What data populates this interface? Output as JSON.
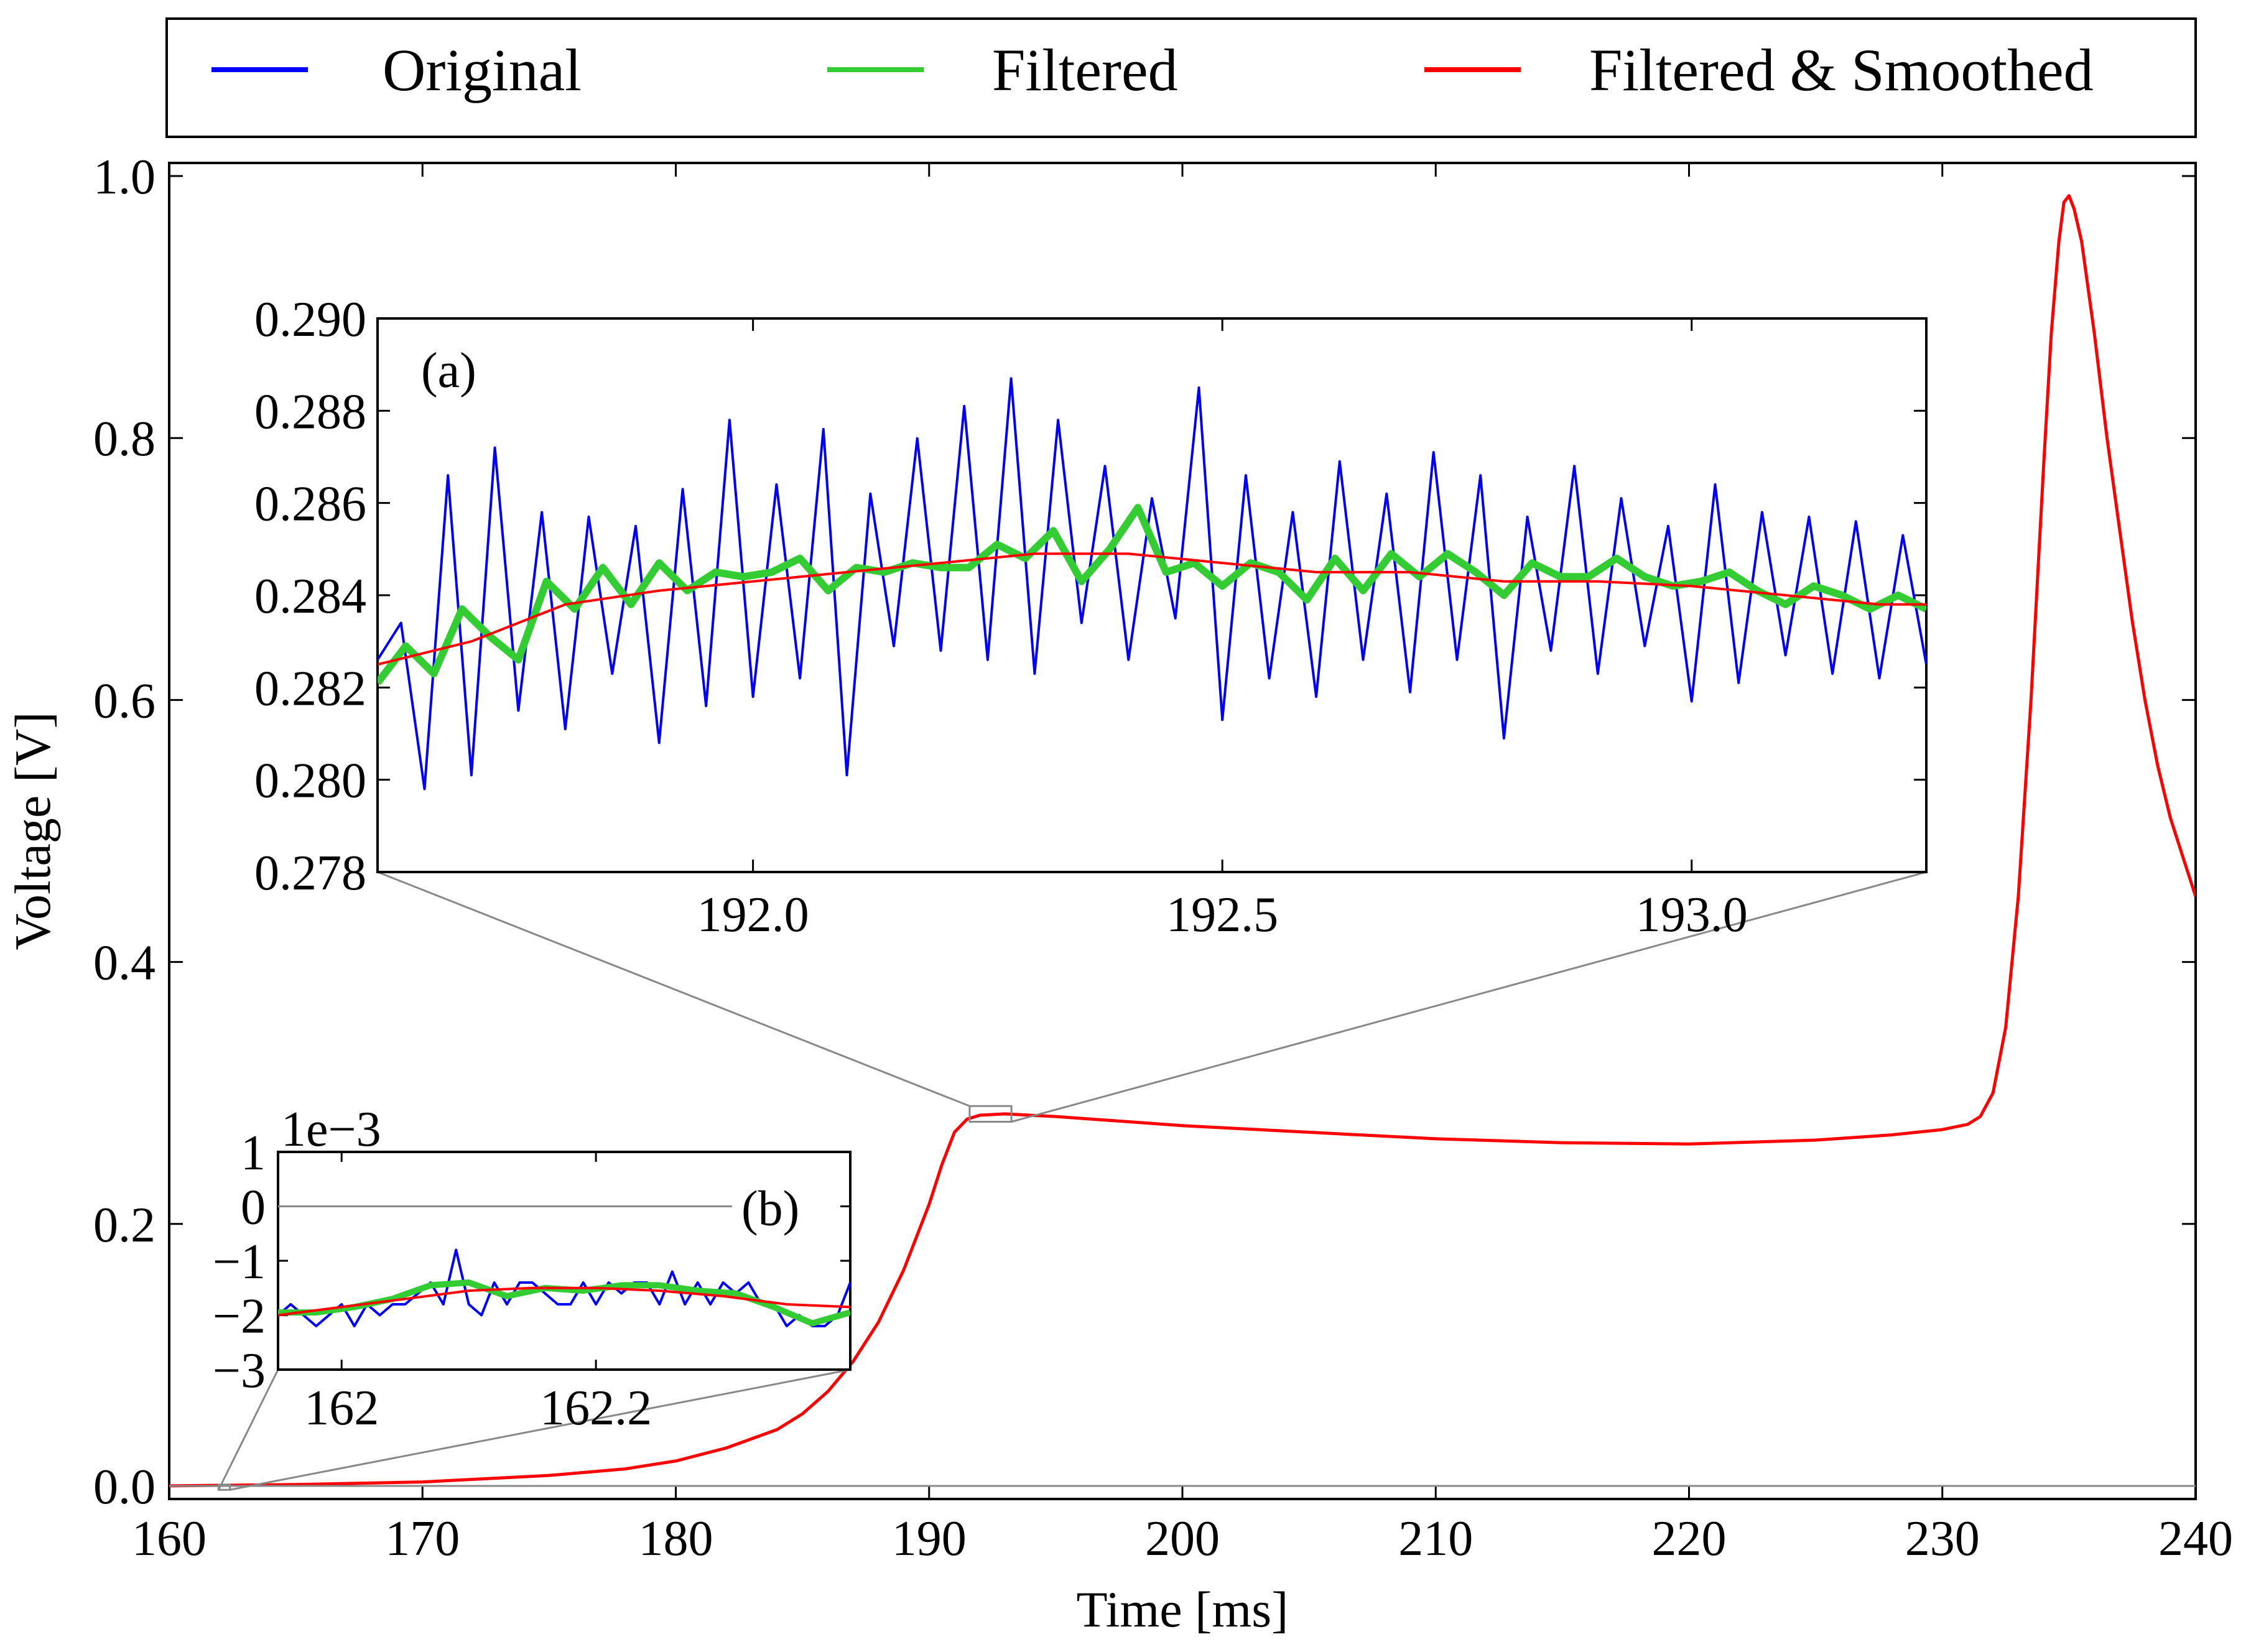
{
  "legend": {
    "placement": "top, above plot",
    "items": [
      {
        "label": "Original",
        "color": "#0000ff"
      },
      {
        "label": "Filtered",
        "color": "#33cc33"
      },
      {
        "label": "Filtered & Smoothed",
        "color": "#ff0000"
      }
    ]
  },
  "chart_data": [
    {
      "type": "line",
      "title": "",
      "xlabel": "Time [ms]",
      "ylabel": "Voltage [V]",
      "xlim": [
        160,
        240
      ],
      "ylim": [
        -0.01,
        1.01
      ],
      "xticks": [
        160,
        170,
        180,
        190,
        200,
        210,
        220,
        230,
        240
      ],
      "xtick_labels": [
        "160",
        "170",
        "180",
        "190",
        "200",
        "210",
        "220",
        "230",
        "240"
      ],
      "yticks": [
        0.0,
        0.2,
        0.4,
        0.6,
        0.8,
        1.0
      ],
      "ytick_labels": [
        "0.0",
        "0.2",
        "0.4",
        "0.6",
        "0.8",
        "1.0"
      ],
      "grid": false,
      "colors": {
        "Original": "#0000ff",
        "Filtered": "#33cc33",
        "Filtered & Smoothed": "#ff0000",
        "zero_line": "#888888"
      },
      "series": [
        {
          "name": "Filtered & Smoothed",
          "x": [
            160,
            165,
            170,
            175,
            178,
            180,
            182,
            184,
            185,
            186,
            187,
            188,
            189,
            190,
            190.5,
            191,
            191.5,
            192,
            193,
            195,
            200,
            205,
            210,
            215,
            220,
            225,
            228,
            230,
            231,
            231.5,
            232,
            232.5,
            233,
            233.5,
            234,
            234.3,
            234.6,
            234.8,
            235,
            235.2,
            235.5,
            236,
            236.5,
            237,
            237.5,
            238,
            238.5,
            239,
            239.5,
            240
          ],
          "y": [
            0.0,
            0.001,
            0.003,
            0.008,
            0.013,
            0.019,
            0.029,
            0.043,
            0.055,
            0.072,
            0.095,
            0.125,
            0.165,
            0.215,
            0.245,
            0.27,
            0.28,
            0.283,
            0.284,
            0.282,
            0.275,
            0.27,
            0.265,
            0.262,
            0.261,
            0.264,
            0.268,
            0.272,
            0.276,
            0.282,
            0.3,
            0.35,
            0.45,
            0.6,
            0.78,
            0.88,
            0.95,
            0.98,
            0.985,
            0.975,
            0.95,
            0.88,
            0.8,
            0.73,
            0.66,
            0.6,
            0.55,
            0.51,
            0.48,
            0.45
          ]
        }
      ],
      "annotations": [
        "(a)",
        "(b)"
      ]
    },
    {
      "type": "line",
      "label": "(a)",
      "xlim": [
        191.6,
        193.25
      ],
      "ylim": [
        0.278,
        0.29
      ],
      "xticks": [
        192.0,
        192.5,
        193.0
      ],
      "xtick_labels": [
        "192.0",
        "192.5",
        "193.0"
      ],
      "yticks": [
        0.278,
        0.28,
        0.282,
        0.284,
        0.286,
        0.288,
        0.29
      ],
      "ytick_labels": [
        "0.278",
        "0.280",
        "0.282",
        "0.284",
        "0.286",
        "0.288",
        "0.290"
      ],
      "zoom_box": {
        "x": [
          191.6,
          193.25
        ],
        "y": [
          0.278,
          0.29
        ]
      },
      "series": [
        {
          "name": "Original",
          "x": [
            191.6,
            191.625,
            191.65,
            191.675,
            191.7,
            191.725,
            191.75,
            191.775,
            191.8,
            191.825,
            191.85,
            191.875,
            191.9,
            191.925,
            191.95,
            191.975,
            192.0,
            192.025,
            192.05,
            192.075,
            192.1,
            192.125,
            192.15,
            192.175,
            192.2,
            192.225,
            192.25,
            192.275,
            192.3,
            192.325,
            192.35,
            192.375,
            192.4,
            192.425,
            192.45,
            192.475,
            192.5,
            192.525,
            192.55,
            192.575,
            192.6,
            192.625,
            192.65,
            192.675,
            192.7,
            192.725,
            192.75,
            192.775,
            192.8,
            192.825,
            192.85,
            192.875,
            192.9,
            192.925,
            192.95,
            192.975,
            193.0,
            193.025,
            193.05,
            193.075,
            193.1,
            193.125,
            193.15,
            193.175,
            193.2,
            193.225,
            193.25
          ],
          "y": [
            0.2826,
            0.2834,
            0.2798,
            0.2866,
            0.2801,
            0.2872,
            0.2815,
            0.2858,
            0.2811,
            0.2857,
            0.2823,
            0.2855,
            0.2808,
            0.2863,
            0.2816,
            0.2878,
            0.2818,
            0.2864,
            0.2822,
            0.2876,
            0.2801,
            0.2862,
            0.2829,
            0.2874,
            0.2828,
            0.2881,
            0.2826,
            0.2887,
            0.2823,
            0.2878,
            0.2834,
            0.2868,
            0.2826,
            0.2861,
            0.2835,
            0.2885,
            0.2813,
            0.2866,
            0.2822,
            0.2858,
            0.2818,
            0.2869,
            0.2826,
            0.2862,
            0.2819,
            0.2871,
            0.2826,
            0.2866,
            0.2809,
            0.2857,
            0.2828,
            0.2868,
            0.2823,
            0.2861,
            0.2829,
            0.2855,
            0.2817,
            0.2864,
            0.2821,
            0.2858,
            0.2827,
            0.2857,
            0.2823,
            0.2856,
            0.2822,
            0.2853,
            0.2825
          ]
        },
        {
          "name": "Filtered",
          "x": [
            191.6,
            191.63,
            191.66,
            191.69,
            191.72,
            191.75,
            191.78,
            191.81,
            191.84,
            191.87,
            191.9,
            191.93,
            191.96,
            191.99,
            192.02,
            192.05,
            192.08,
            192.11,
            192.14,
            192.17,
            192.2,
            192.23,
            192.26,
            192.29,
            192.32,
            192.35,
            192.38,
            192.41,
            192.44,
            192.47,
            192.5,
            192.53,
            192.56,
            192.59,
            192.62,
            192.65,
            192.68,
            192.71,
            192.74,
            192.77,
            192.8,
            192.83,
            192.86,
            192.89,
            192.92,
            192.95,
            192.98,
            193.01,
            193.04,
            193.07,
            193.1,
            193.13,
            193.16,
            193.19,
            193.22,
            193.25
          ],
          "y": [
            0.2821,
            0.2829,
            0.2823,
            0.2837,
            0.2831,
            0.2826,
            0.2843,
            0.2837,
            0.2846,
            0.2838,
            0.2847,
            0.2841,
            0.2845,
            0.2844,
            0.2845,
            0.2848,
            0.2841,
            0.2846,
            0.2845,
            0.2847,
            0.2846,
            0.2846,
            0.2851,
            0.2848,
            0.2854,
            0.2843,
            0.285,
            0.2859,
            0.2845,
            0.2847,
            0.2842,
            0.2847,
            0.2845,
            0.2839,
            0.2848,
            0.2841,
            0.2849,
            0.2844,
            0.2849,
            0.2845,
            0.284,
            0.2847,
            0.2844,
            0.2844,
            0.2848,
            0.2844,
            0.2842,
            0.2843,
            0.2845,
            0.2841,
            0.2838,
            0.2842,
            0.284,
            0.2837,
            0.284,
            0.2837
          ]
        },
        {
          "name": "Filtered & Smoothed",
          "x": [
            191.6,
            191.7,
            191.8,
            191.9,
            192.0,
            192.1,
            192.2,
            192.3,
            192.4,
            192.5,
            192.6,
            192.7,
            192.8,
            192.9,
            193.0,
            193.1,
            193.2,
            193.25
          ],
          "y": [
            0.2825,
            0.283,
            0.2838,
            0.2841,
            0.2843,
            0.2845,
            0.2847,
            0.2849,
            0.2849,
            0.2847,
            0.2845,
            0.2845,
            0.2843,
            0.2843,
            0.2842,
            0.284,
            0.2838,
            0.2838
          ]
        }
      ]
    },
    {
      "type": "line",
      "label": "(b)",
      "scale_label": "1e−3",
      "xlim": [
        161.95,
        162.4
      ],
      "ylim": [
        -3,
        1
      ],
      "xticks": [
        162,
        162.2
      ],
      "xtick_labels": [
        "162",
        "162.2"
      ],
      "yticks": [
        1,
        0,
        -1,
        -2,
        -3
      ],
      "ytick_labels": [
        "1",
        "0",
        "−1",
        "−2",
        "−3"
      ],
      "zoom_box": {
        "x": [
          161.95,
          162.4
        ],
        "y": [
          -0.003,
          0.001
        ]
      },
      "series": [
        {
          "name": "Original",
          "x": [
            161.95,
            161.96,
            161.97,
            161.98,
            161.99,
            162.0,
            162.01,
            162.02,
            162.03,
            162.04,
            162.05,
            162.06,
            162.07,
            162.08,
            162.09,
            162.1,
            162.11,
            162.12,
            162.13,
            162.14,
            162.15,
            162.16,
            162.17,
            162.18,
            162.19,
            162.2,
            162.21,
            162.22,
            162.23,
            162.24,
            162.25,
            162.26,
            162.27,
            162.28,
            162.29,
            162.3,
            162.31,
            162.32,
            162.33,
            162.34,
            162.35,
            162.36,
            162.37,
            162.38,
            162.39,
            162.4
          ],
          "y": [
            -2.0,
            -1.8,
            -2.0,
            -2.2,
            -2.0,
            -1.8,
            -2.2,
            -1.8,
            -2.0,
            -1.8,
            -1.8,
            -1.6,
            -1.4,
            -1.8,
            -0.8,
            -1.8,
            -2.0,
            -1.4,
            -1.8,
            -1.4,
            -1.4,
            -1.6,
            -1.8,
            -1.8,
            -1.4,
            -1.8,
            -1.4,
            -1.6,
            -1.4,
            -1.4,
            -1.8,
            -1.2,
            -1.8,
            -1.4,
            -1.8,
            -1.4,
            -1.6,
            -1.4,
            -1.8,
            -1.8,
            -2.2,
            -2.0,
            -2.2,
            -2.2,
            -2.0,
            -1.4
          ]
        },
        {
          "name": "Filtered",
          "x": [
            161.95,
            161.98,
            162.01,
            162.04,
            162.07,
            162.1,
            162.13,
            162.16,
            162.19,
            162.22,
            162.25,
            162.28,
            162.31,
            162.34,
            162.37,
            162.4
          ],
          "y": [
            -1.95,
            -1.95,
            -1.85,
            -1.7,
            -1.45,
            -1.4,
            -1.65,
            -1.5,
            -1.55,
            -1.45,
            -1.45,
            -1.55,
            -1.6,
            -1.85,
            -2.15,
            -1.95
          ]
        },
        {
          "name": "Filtered & Smoothed",
          "x": [
            161.95,
            162.0,
            162.05,
            162.1,
            162.15,
            162.2,
            162.25,
            162.3,
            162.35,
            162.4
          ],
          "y": [
            -2.0,
            -1.85,
            -1.7,
            -1.55,
            -1.5,
            -1.5,
            -1.55,
            -1.65,
            -1.8,
            -1.85
          ]
        }
      ]
    }
  ]
}
